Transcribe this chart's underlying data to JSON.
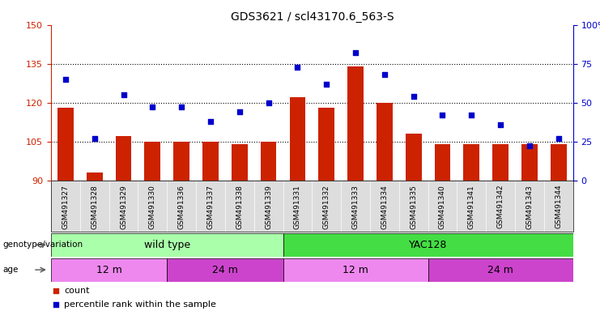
{
  "title": "GDS3621 / scl43170.6_563-S",
  "samples": [
    "GSM491327",
    "GSM491328",
    "GSM491329",
    "GSM491330",
    "GSM491336",
    "GSM491337",
    "GSM491338",
    "GSM491339",
    "GSM491331",
    "GSM491332",
    "GSM491333",
    "GSM491334",
    "GSM491335",
    "GSM491340",
    "GSM491341",
    "GSM491342",
    "GSM491343",
    "GSM491344"
  ],
  "counts": [
    118,
    93,
    107,
    105,
    105,
    105,
    104,
    105,
    122,
    118,
    134,
    120,
    108,
    104,
    104,
    104,
    104,
    104
  ],
  "percentiles": [
    65,
    27,
    55,
    47,
    47,
    38,
    44,
    50,
    73,
    62,
    82,
    68,
    54,
    42,
    42,
    36,
    22,
    27
  ],
  "ylim_left": [
    90,
    150
  ],
  "ylim_right": [
    0,
    100
  ],
  "yticks_left": [
    90,
    105,
    120,
    135,
    150
  ],
  "yticks_right": [
    0,
    25,
    50,
    75,
    100
  ],
  "bar_color": "#cc2200",
  "dot_color": "#0000cc",
  "grid_lines": [
    105,
    120,
    135
  ],
  "genotype_groups": [
    {
      "label": "wild type",
      "start": 0,
      "end": 8,
      "color": "#aaffaa"
    },
    {
      "label": "YAC128",
      "start": 8,
      "end": 18,
      "color": "#44dd44"
    }
  ],
  "age_groups": [
    {
      "label": "12 m",
      "start": 0,
      "end": 4,
      "color": "#ee88ee"
    },
    {
      "label": "24 m",
      "start": 4,
      "end": 8,
      "color": "#cc44cc"
    },
    {
      "label": "12 m",
      "start": 8,
      "end": 13,
      "color": "#ee88ee"
    },
    {
      "label": "24 m",
      "start": 13,
      "end": 18,
      "color": "#cc44cc"
    }
  ],
  "geno_label": "genotype/variation",
  "age_label": "age",
  "legend_count_label": "count",
  "legend_pct_label": "percentile rank within the sample",
  "bar_color_legend": "#cc2200",
  "dot_color_legend": "#0000cc"
}
